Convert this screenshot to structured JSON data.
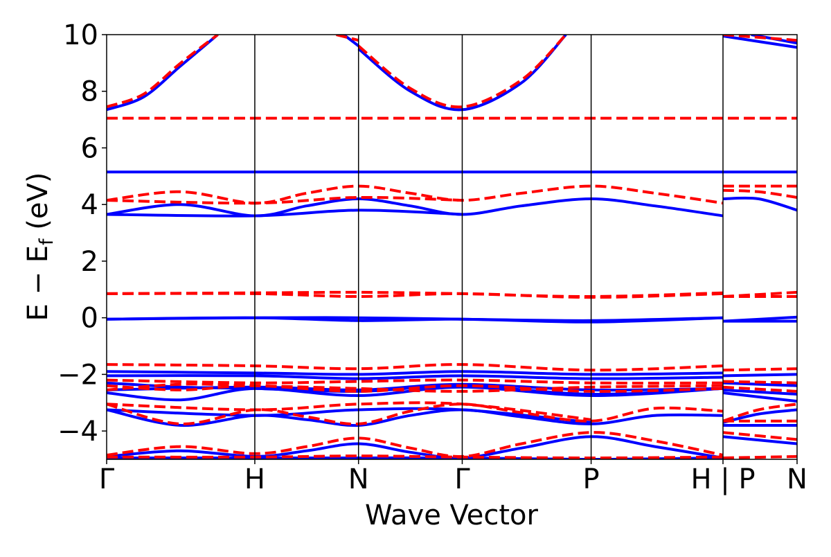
{
  "chart_data": {
    "type": "line",
    "title": "",
    "xlabel": "Wave Vector",
    "ylabel_main": "E − E",
    "ylabel_sub": "f",
    "ylabel_unit": "(eV)",
    "ylim": [
      -5,
      10
    ],
    "yticks": [
      -4,
      -2,
      0,
      2,
      4,
      6,
      8,
      10
    ],
    "ytick_labels": [
      "−4",
      "−2",
      "0",
      "2",
      "4",
      "6",
      "8",
      "10"
    ],
    "xlim": [
      0,
      4.66
    ],
    "kpoints": [
      {
        "x": 0.0,
        "label": "Γ"
      },
      {
        "x": 1.0,
        "label": "H"
      },
      {
        "x": 1.7,
        "label": "N"
      },
      {
        "x": 2.4,
        "label": "Γ"
      },
      {
        "x": 3.27,
        "label": "P"
      },
      {
        "x": 4.16,
        "label": "H | P"
      },
      {
        "x": 4.66,
        "label": "N"
      }
    ],
    "vlines": [
      1.0,
      1.7,
      2.4,
      3.27,
      4.16
    ],
    "grid": false,
    "series": [
      {
        "color": "#0000ff",
        "style": "solid",
        "bands": [
          {
            "x": [
              0,
              0.25,
              0.5,
              0.75
            ],
            "y": [
              7.35,
              7.8,
              8.9,
              10.0
            ]
          },
          {
            "x": [
              1.6,
              1.7
            ],
            "y": [
              10.0,
              9.6
            ]
          },
          {
            "x": [
              1.7,
              2.05,
              2.4,
              2.8,
              3.1
            ],
            "y": [
              9.5,
              8.0,
              7.35,
              8.3,
              10.0
            ]
          },
          {
            "x": [
              4.16,
              4.66
            ],
            "y": [
              9.95,
              9.55
            ]
          },
          {
            "x": [
              4.35,
              4.66
            ],
            "y": [
              10.0,
              9.7
            ]
          },
          {
            "x": [
              0,
              4.66
            ],
            "y": [
              5.15,
              5.15
            ]
          },
          {
            "x": [
              0,
              0.5,
              1.0,
              1.35,
              1.7,
              2.05,
              2.4,
              2.8,
              3.27,
              3.7,
              4.16
            ],
            "y": [
              3.65,
              4.0,
              3.6,
              3.95,
              4.2,
              3.95,
              3.65,
              3.95,
              4.2,
              3.95,
              3.6
            ]
          },
          {
            "x": [
              0,
              1.0,
              1.7,
              2.4
            ],
            "y": [
              3.65,
              3.6,
              3.8,
              3.65
            ]
          },
          {
            "x": [
              4.16,
              4.4,
              4.66
            ],
            "y": [
              4.2,
              4.2,
              3.8
            ]
          },
          {
            "x": [
              0,
              1.0,
              1.7,
              2.4,
              3.27,
              4.16
            ],
            "y": [
              -0.05,
              0.0,
              -0.1,
              -0.05,
              -0.15,
              0.0
            ]
          },
          {
            "x": [
              0,
              1.0,
              1.7,
              2.4,
              3.27,
              4.16
            ],
            "y": [
              -0.05,
              0.0,
              0.0,
              -0.05,
              -0.1,
              0.0
            ]
          },
          {
            "x": [
              4.16,
              4.66
            ],
            "y": [
              -0.12,
              -0.12
            ]
          },
          {
            "x": [
              4.16,
              4.66
            ],
            "y": [
              -0.12,
              0.02
            ]
          },
          {
            "x": [
              0,
              1.0,
              1.7,
              2.4,
              3.27,
              4.16
            ],
            "y": [
              -1.9,
              -1.95,
              -2.0,
              -1.9,
              -2.0,
              -1.95
            ]
          },
          {
            "x": [
              0,
              1.0,
              1.7,
              2.4,
              3.27,
              4.16
            ],
            "y": [
              -2.05,
              -2.05,
              -2.15,
              -2.05,
              -2.15,
              -2.1
            ]
          },
          {
            "x": [
              0,
              0.5,
              1.0,
              1.7,
              2.4,
              3.27,
              4.16
            ],
            "y": [
              -2.3,
              -2.45,
              -2.5,
              -2.6,
              -2.4,
              -2.7,
              -2.5
            ]
          },
          {
            "x": [
              0,
              0.5,
              1.0,
              1.7,
              2.4,
              3.27,
              4.16
            ],
            "y": [
              -2.65,
              -2.9,
              -2.5,
              -2.75,
              -2.45,
              -2.75,
              -2.5
            ]
          },
          {
            "x": [
              0,
              1.0,
              1.7,
              2.4,
              3.27,
              4.16
            ],
            "y": [
              -2.55,
              -2.45,
              -2.55,
              -2.35,
              -2.55,
              -2.5
            ]
          },
          {
            "x": [
              4.16,
              4.66
            ],
            "y": [
              -2.05,
              -2.0
            ]
          },
          {
            "x": [
              4.16,
              4.66
            ],
            "y": [
              -2.3,
              -2.4
            ]
          },
          {
            "x": [
              4.16,
              4.66
            ],
            "y": [
              -2.55,
              -2.7
            ]
          },
          {
            "x": [
              4.16,
              4.66
            ],
            "y": [
              -2.65,
              -2.95
            ]
          },
          {
            "x": [
              0,
              0.5,
              1.0,
              1.35,
              1.7,
              2.05,
              2.4,
              2.8,
              3.27,
              3.7,
              4.16
            ],
            "y": [
              -3.25,
              -3.8,
              -3.45,
              -3.6,
              -3.8,
              -3.45,
              -3.25,
              -3.5,
              -3.75,
              -3.45,
              -3.45
            ]
          },
          {
            "x": [
              0,
              1.0,
              1.7,
              2.4,
              3.27
            ],
            "y": [
              -3.25,
              -3.45,
              -3.25,
              -3.25,
              -3.7
            ]
          },
          {
            "x": [
              4.16,
              4.4,
              4.66
            ],
            "y": [
              -3.7,
              -3.4,
              -3.25
            ]
          },
          {
            "x": [
              4.16,
              4.66
            ],
            "y": [
              -3.8,
              -3.8
            ]
          },
          {
            "x": [
              0,
              0.5,
              1.0,
              1.35,
              1.7,
              2.05,
              2.4,
              2.8,
              3.27,
              3.7,
              4.16
            ],
            "y": [
              -4.9,
              -4.7,
              -4.9,
              -4.7,
              -4.45,
              -4.75,
              -4.95,
              -4.6,
              -4.2,
              -4.55,
              -4.95
            ]
          },
          {
            "x": [
              0,
              1.0,
              1.7,
              2.4,
              3.27,
              4.16
            ],
            "y": [
              -4.95,
              -4.95,
              -4.95,
              -4.95,
              -5.0,
              -4.95
            ]
          },
          {
            "x": [
              4.16,
              4.66
            ],
            "y": [
              -4.2,
              -4.45
            ]
          }
        ]
      },
      {
        "color": "#ff0000",
        "style": "dashed",
        "bands": [
          {
            "x": [
              0,
              0.25,
              0.5,
              0.75
            ],
            "y": [
              7.45,
              7.9,
              9.0,
              10.0
            ]
          },
          {
            "x": [
              1.55,
              1.7
            ],
            "y": [
              10.0,
              9.8
            ]
          },
          {
            "x": [
              1.7,
              2.05,
              2.4,
              2.8,
              3.1
            ],
            "y": [
              9.6,
              8.1,
              7.45,
              8.4,
              10.0
            ]
          },
          {
            "x": [
              4.16,
              4.66
            ],
            "y": [
              10.0,
              9.8
            ]
          },
          {
            "x": [
              0,
              4.66
            ],
            "y": [
              7.05,
              7.05
            ]
          },
          {
            "x": [
              0,
              0.5,
              1.0,
              1.35,
              1.7,
              2.05,
              2.4,
              2.8,
              3.27,
              3.7,
              4.16
            ],
            "y": [
              4.15,
              4.45,
              4.05,
              4.4,
              4.65,
              4.4,
              4.15,
              4.4,
              4.65,
              4.4,
              4.05
            ]
          },
          {
            "x": [
              0,
              1.0,
              1.7,
              2.4
            ],
            "y": [
              4.15,
              4.05,
              4.25,
              4.15
            ]
          },
          {
            "x": [
              4.16,
              4.66
            ],
            "y": [
              4.65,
              4.65
            ]
          },
          {
            "x": [
              4.16,
              4.4,
              4.66
            ],
            "y": [
              4.5,
              4.45,
              4.25
            ]
          },
          {
            "x": [
              0,
              1.0,
              1.7,
              2.4,
              3.27,
              4.16
            ],
            "y": [
              0.85,
              0.88,
              0.9,
              0.85,
              0.75,
              0.88
            ]
          },
          {
            "x": [
              0,
              1.0,
              1.7,
              2.4,
              3.27,
              4.16
            ],
            "y": [
              0.85,
              0.85,
              0.75,
              0.85,
              0.72,
              0.85
            ]
          },
          {
            "x": [
              4.16,
              4.66
            ],
            "y": [
              0.75,
              0.9
            ]
          },
          {
            "x": [
              4.16,
              4.66
            ],
            "y": [
              0.75,
              0.75
            ]
          },
          {
            "x": [
              0,
              1.0,
              1.7,
              2.4,
              3.27,
              4.16
            ],
            "y": [
              -1.65,
              -1.7,
              -1.8,
              -1.65,
              -1.85,
              -1.7
            ]
          },
          {
            "x": [
              0,
              1.0,
              1.7,
              2.4,
              3.27,
              4.16
            ],
            "y": [
              -2.2,
              -2.3,
              -2.25,
              -2.2,
              -2.3,
              -2.3
            ]
          },
          {
            "x": [
              0,
              0.5,
              1.0,
              1.7,
              2.4,
              3.27,
              4.16
            ],
            "y": [
              -2.4,
              -2.55,
              -2.4,
              -2.6,
              -2.4,
              -2.6,
              -2.5
            ]
          },
          {
            "x": [
              0,
              0.5,
              1.0,
              1.7,
              2.4,
              3.27,
              4.16
            ],
            "y": [
              -2.55,
              -2.35,
              -2.4,
              -2.5,
              -2.6,
              -2.45,
              -2.4
            ]
          },
          {
            "x": [
              4.16,
              4.66
            ],
            "y": [
              -1.85,
              -1.8
            ]
          },
          {
            "x": [
              4.16,
              4.66
            ],
            "y": [
              -2.25,
              -2.3
            ]
          },
          {
            "x": [
              4.16,
              4.66
            ],
            "y": [
              -2.45,
              -2.6
            ]
          },
          {
            "x": [
              0,
              0.5,
              1.0,
              1.35,
              1.7,
              2.05,
              2.4,
              2.8,
              3.27,
              3.7,
              4.16
            ],
            "y": [
              -3.05,
              -3.75,
              -3.25,
              -3.5,
              -3.75,
              -3.3,
              -3.05,
              -3.35,
              -3.65,
              -3.2,
              -3.3
            ]
          },
          {
            "x": [
              0,
              1.0,
              1.7,
              2.4,
              3.27
            ],
            "y": [
              -3.05,
              -3.25,
              -3.05,
              -3.05,
              -3.6
            ]
          },
          {
            "x": [
              4.16,
              4.4,
              4.66
            ],
            "y": [
              -3.65,
              -3.25,
              -3.05
            ]
          },
          {
            "x": [
              4.16,
              4.66
            ],
            "y": [
              -3.65,
              -3.65
            ]
          },
          {
            "x": [
              0,
              0.5,
              1.0,
              1.35,
              1.7,
              2.05,
              2.4,
              2.8,
              3.27,
              3.7,
              4.16
            ],
            "y": [
              -4.85,
              -4.55,
              -4.8,
              -4.55,
              -4.25,
              -4.6,
              -4.9,
              -4.45,
              -4.05,
              -4.35,
              -4.85
            ]
          },
          {
            "x": [
              0,
              1.0,
              1.7,
              2.4,
              3.27,
              4.16
            ],
            "y": [
              -4.92,
              -4.92,
              -4.88,
              -4.92,
              -4.95,
              -4.92
            ]
          },
          {
            "x": [
              4.16,
              4.66
            ],
            "y": [
              -4.05,
              -4.3
            ]
          },
          {
            "x": [
              4.16,
              4.66
            ],
            "y": [
              -4.95,
              -4.9
            ]
          }
        ]
      }
    ]
  }
}
